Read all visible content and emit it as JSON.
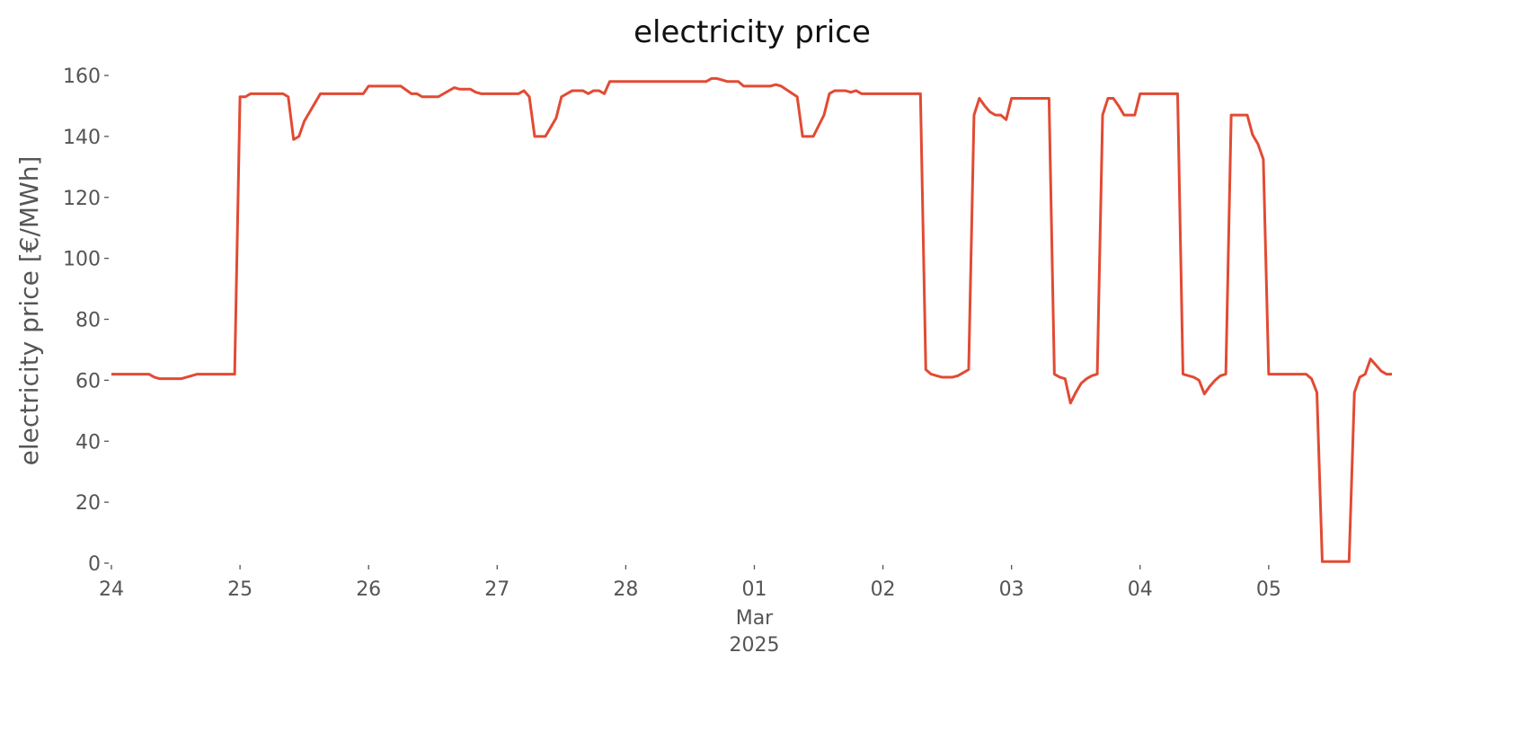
{
  "chart_data": {
    "type": "line",
    "title": "electricity price",
    "ylabel": "electricity price [€/MWh]",
    "x": [
      "2025-02-24T00:00",
      "2025-02-24T07:00",
      "2025-02-24T08:00",
      "2025-02-24T09:00",
      "2025-02-24T13:00",
      "2025-02-24T15:00",
      "2025-02-24T16:00",
      "2025-02-24T17:00",
      "2025-02-24T23:00",
      "2025-02-25T00:00",
      "2025-02-25T01:00",
      "2025-02-25T02:00",
      "2025-02-25T08:00",
      "2025-02-25T09:00",
      "2025-02-25T10:00",
      "2025-02-25T11:00",
      "2025-02-25T12:00",
      "2025-02-25T15:00",
      "2025-02-25T23:00",
      "2025-02-26T00:00",
      "2025-02-26T06:00",
      "2025-02-26T08:00",
      "2025-02-26T09:00",
      "2025-02-26T10:00",
      "2025-02-26T13:00",
      "2025-02-26T15:00",
      "2025-02-26T16:00",
      "2025-02-26T17:00",
      "2025-02-26T19:00",
      "2025-02-26T20:00",
      "2025-02-26T21:00",
      "2025-02-27T04:00",
      "2025-02-27T05:00",
      "2025-02-27T06:00",
      "2025-02-27T07:00",
      "2025-02-27T09:00",
      "2025-02-27T10:00",
      "2025-02-27T11:00",
      "2025-02-27T12:00",
      "2025-02-27T14:00",
      "2025-02-27T16:00",
      "2025-02-27T17:00",
      "2025-02-27T18:00",
      "2025-02-27T19:00",
      "2025-02-27T20:00",
      "2025-02-27T21:00",
      "2025-02-28T15:00",
      "2025-02-28T16:00",
      "2025-02-28T17:00",
      "2025-02-28T18:00",
      "2025-02-28T19:00",
      "2025-02-28T21:00",
      "2025-02-28T22:00",
      "2025-03-01T03:00",
      "2025-03-01T04:00",
      "2025-03-01T05:00",
      "2025-03-01T08:00",
      "2025-03-01T09:00",
      "2025-03-01T11:00",
      "2025-03-01T13:00",
      "2025-03-01T14:00",
      "2025-03-01T15:00",
      "2025-03-01T17:00",
      "2025-03-01T18:00",
      "2025-03-01T19:00",
      "2025-03-01T20:00",
      "2025-03-02T07:00",
      "2025-03-02T08:00",
      "2025-03-02T09:00",
      "2025-03-02T10:00",
      "2025-03-02T11:00",
      "2025-03-02T13:00",
      "2025-03-02T14:00",
      "2025-03-02T15:00",
      "2025-03-02T16:00",
      "2025-03-02T17:00",
      "2025-03-02T18:00",
      "2025-03-02T19:00",
      "2025-03-02T20:00",
      "2025-03-02T21:00",
      "2025-03-02T22:00",
      "2025-03-02T23:00",
      "2025-03-03T00:00",
      "2025-03-03T07:00",
      "2025-03-03T08:00",
      "2025-03-03T09:00",
      "2025-03-03T10:00",
      "2025-03-03T11:00",
      "2025-03-03T12:00",
      "2025-03-03T13:00",
      "2025-03-03T14:00",
      "2025-03-03T15:00",
      "2025-03-03T16:00",
      "2025-03-03T17:00",
      "2025-03-03T18:00",
      "2025-03-03T19:00",
      "2025-03-03T20:00",
      "2025-03-03T21:00",
      "2025-03-03T23:00",
      "2025-03-04T00:00",
      "2025-03-04T07:00",
      "2025-03-04T08:00",
      "2025-03-04T10:00",
      "2025-03-04T11:00",
      "2025-03-04T12:00",
      "2025-03-04T13:00",
      "2025-03-04T14:00",
      "2025-03-04T15:00",
      "2025-03-04T16:00",
      "2025-03-04T17:00",
      "2025-03-04T20:00",
      "2025-03-04T21:00",
      "2025-03-04T22:00",
      "2025-03-04T23:00",
      "2025-03-05T00:00",
      "2025-03-05T07:00",
      "2025-03-05T08:00",
      "2025-03-05T09:00",
      "2025-03-05T10:00",
      "2025-03-05T15:00",
      "2025-03-05T16:00",
      "2025-03-05T17:00",
      "2025-03-05T18:00",
      "2025-03-05T19:00",
      "2025-03-05T20:00",
      "2025-03-05T21:00",
      "2025-03-05T22:00",
      "2025-03-05T23:00"
    ],
    "series": [
      {
        "color": "#e24a33",
        "values": [
          62,
          62,
          61,
          60.5,
          60.5,
          61.5,
          62,
          62,
          62,
          153,
          153,
          154,
          154,
          153,
          139,
          140,
          145,
          154,
          154,
          156.5,
          156.5,
          154,
          154,
          153,
          153,
          155,
          156,
          155.5,
          155.5,
          154.5,
          154,
          154,
          155,
          153,
          140,
          140,
          143,
          146,
          153,
          155,
          155,
          154,
          155,
          155,
          154,
          158,
          158,
          159,
          159,
          158.5,
          158,
          158,
          156.5,
          156.5,
          157,
          156.5,
          153,
          140,
          140,
          147,
          154,
          155,
          155,
          154.5,
          155,
          154,
          154,
          63.5,
          62,
          61.5,
          61,
          61,
          61.5,
          62.5,
          63.5,
          147,
          152.5,
          150,
          148,
          147,
          147,
          145.5,
          152.5,
          152.5,
          62,
          61,
          60.5,
          52.5,
          56,
          59,
          60.5,
          61.5,
          62,
          147,
          152.5,
          152.5,
          150,
          147,
          147,
          154,
          154,
          62,
          61,
          60,
          55.5,
          58,
          60,
          61.5,
          62,
          147,
          147,
          140.5,
          137.5,
          132.5,
          62,
          62,
          60.5,
          56,
          0.5,
          0.5,
          56,
          61,
          62,
          67,
          65,
          63,
          62,
          62
        ]
      }
    ],
    "xlim": [
      "2025-02-24T00:00",
      "2025-03-05T23:00"
    ],
    "xticks": [
      {
        "value": "2025-02-24",
        "label": "24"
      },
      {
        "value": "2025-02-25",
        "label": "25"
      },
      {
        "value": "2025-02-26",
        "label": "26"
      },
      {
        "value": "2025-02-27",
        "label": "27"
      },
      {
        "value": "2025-02-28",
        "label": "28"
      },
      {
        "value": "2025-03-01",
        "label": "01",
        "sublabels": [
          "Mar",
          "2025"
        ]
      },
      {
        "value": "2025-03-02",
        "label": "02"
      },
      {
        "value": "2025-03-03",
        "label": "03"
      },
      {
        "value": "2025-03-04",
        "label": "04"
      },
      {
        "value": "2025-03-05",
        "label": "05"
      }
    ],
    "ylim": [
      0,
      160
    ],
    "yticks": [
      0,
      20,
      40,
      60,
      80,
      100,
      120,
      140,
      160
    ],
    "grid": false
  }
}
